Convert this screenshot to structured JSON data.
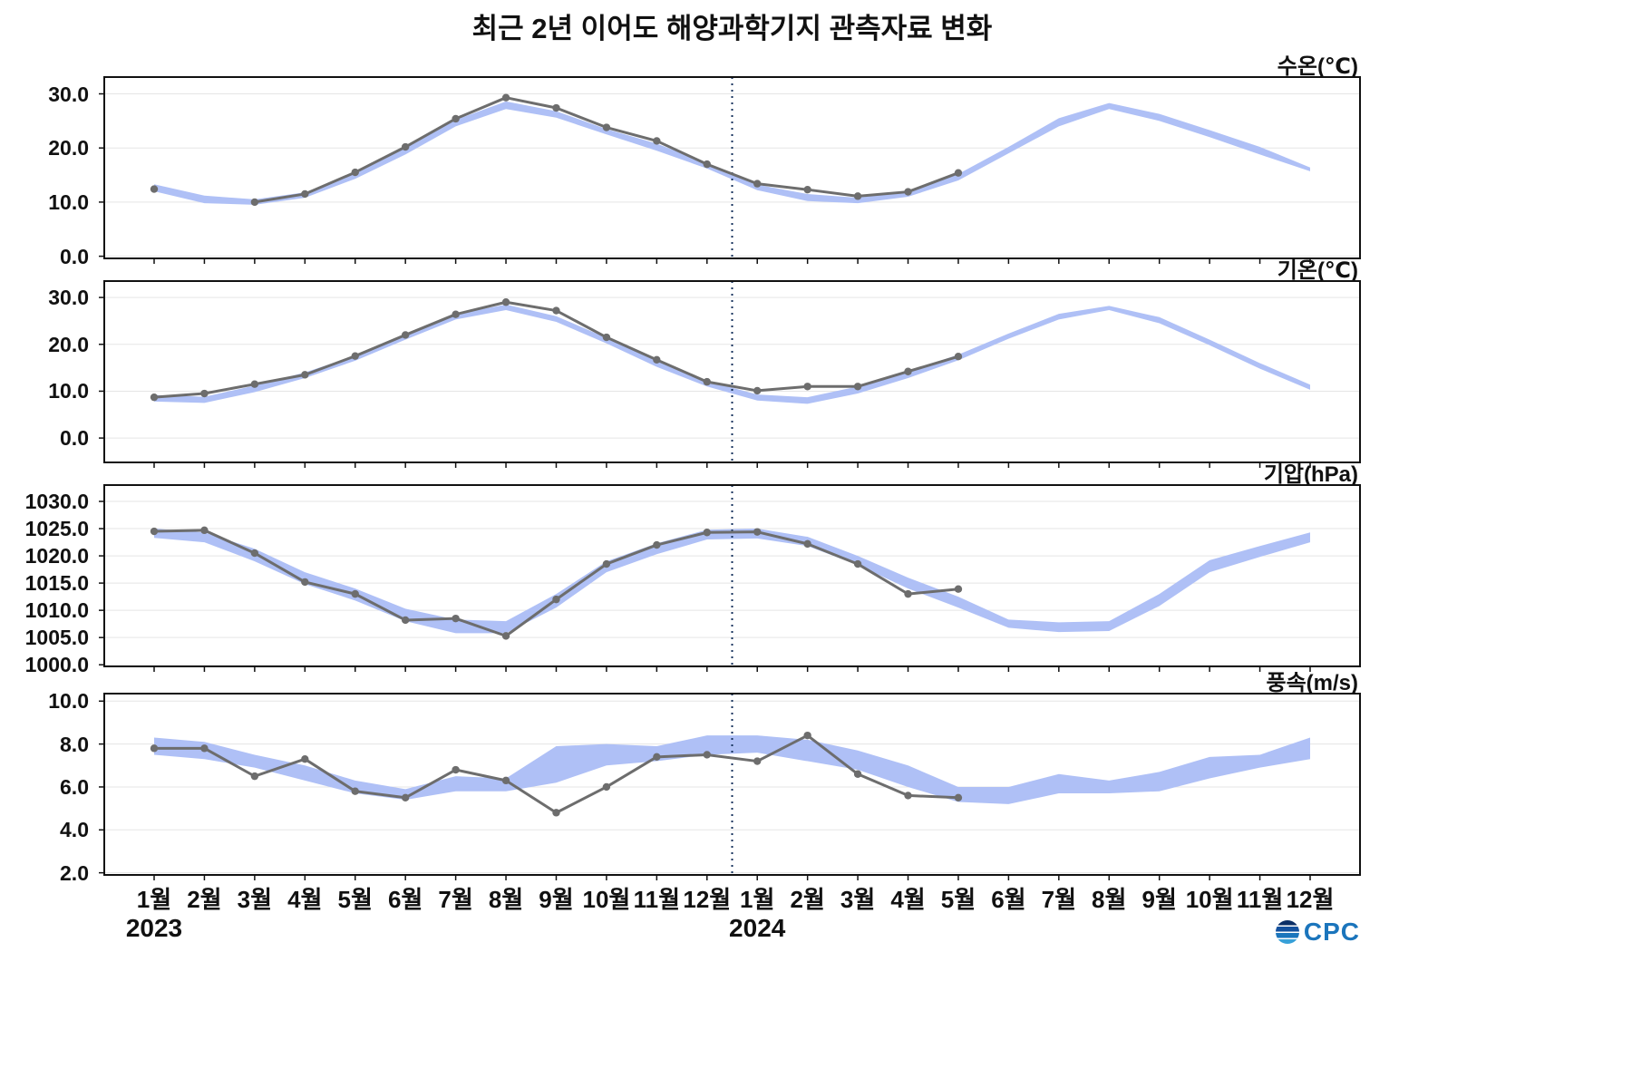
{
  "title": "최근 2년 이어도 해양과학기지 관측자료 변화",
  "x_axis": {
    "month_labels": [
      "1월",
      "2월",
      "3월",
      "4월",
      "5월",
      "6월",
      "7월",
      "8월",
      "9월",
      "10월",
      "11월",
      "12월",
      "1월",
      "2월",
      "3월",
      "4월",
      "5월",
      "6월",
      "7월",
      "8월",
      "9월",
      "10월",
      "11월",
      "12월"
    ],
    "year_labels": [
      "2023",
      "2024"
    ],
    "divider_between": [
      11,
      12
    ]
  },
  "colors": {
    "observed": "#6d6d6d",
    "band": "#afc0f6",
    "divider": "#16325c",
    "grid": "#e5e5e5",
    "axis": "#111111",
    "logo_blue": "#1b75bc"
  },
  "logo": {
    "name": "OCPC",
    "text_after_icon": "CPC"
  },
  "chart_data": [
    {
      "type": "line",
      "unit_label": "수온(℃)",
      "ylim": [
        -0.4,
        33.1
      ],
      "yticks": [
        0,
        10,
        20,
        30
      ],
      "ytick_labels": [
        "0.0",
        "10.0",
        "20.0",
        "30.0"
      ],
      "observed": [
        12.4,
        null,
        10.0,
        11.5,
        15.5,
        20.2,
        25.4,
        29.3,
        27.4,
        23.8,
        21.3,
        17.0,
        13.4,
        12.3,
        11.1,
        11.9,
        15.4,
        null,
        null,
        null,
        null,
        null,
        null,
        null
      ],
      "band_upper": [
        13.3,
        11.2,
        10.5,
        11.8,
        15.3,
        20.0,
        25.2,
        28.6,
        26.8,
        23.5,
        20.8,
        17.2,
        13.2,
        11.5,
        10.8,
        12.0,
        15.2,
        20.2,
        25.5,
        28.3,
        26.3,
        23.3,
        20.2,
        16.4
      ],
      "band_lower": [
        12.0,
        9.8,
        9.5,
        10.8,
        14.3,
        18.8,
        24.0,
        27.2,
        25.6,
        22.5,
        19.5,
        16.2,
        12.2,
        10.2,
        9.8,
        11.0,
        14.0,
        19.0,
        24.0,
        27.2,
        25.0,
        22.0,
        18.8,
        15.7
      ]
    },
    {
      "type": "line",
      "unit_label": "기온(℃)",
      "ylim": [
        -5.2,
        33.5
      ],
      "yticks": [
        0,
        10,
        20,
        30
      ],
      "ytick_labels": [
        "0.0",
        "10.0",
        "20.0",
        "30.0"
      ],
      "observed": [
        8.7,
        9.5,
        11.5,
        13.5,
        17.5,
        22.0,
        26.4,
        29.0,
        27.2,
        21.5,
        16.7,
        12.0,
        10.1,
        11.0,
        11.0,
        14.2,
        17.4,
        null,
        null,
        null,
        null,
        null,
        null,
        null
      ],
      "band_upper": [
        9.2,
        8.8,
        11.2,
        14.0,
        17.6,
        22.0,
        26.4,
        28.5,
        26.0,
        21.4,
        16.4,
        12.2,
        9.3,
        8.7,
        11.0,
        14.2,
        17.8,
        22.3,
        26.5,
        28.2,
        25.8,
        21.0,
        16.0,
        11.4
      ],
      "band_lower": [
        7.8,
        7.5,
        9.8,
        12.8,
        16.5,
        21.0,
        25.3,
        27.3,
        24.8,
        20.2,
        15.2,
        11.0,
        8.0,
        7.3,
        9.5,
        12.8,
        16.6,
        21.2,
        25.3,
        27.3,
        24.5,
        19.8,
        14.8,
        10.3
      ]
    },
    {
      "type": "line",
      "unit_label": "기압(hPa)",
      "ylim": [
        999.7,
        1033.0
      ],
      "yticks": [
        1000,
        1005,
        1010,
        1015,
        1020,
        1025,
        1030
      ],
      "ytick_labels": [
        "1000.0",
        "1005.0",
        "1010.0",
        "1015.0",
        "1020.0",
        "1025.0",
        "1030.0"
      ],
      "observed": [
        1024.5,
        1024.7,
        1020.5,
        1015.2,
        1013.0,
        1008.2,
        1008.5,
        1005.3,
        1012.0,
        1018.5,
        1022.0,
        1024.3,
        1024.4,
        1022.2,
        1018.5,
        1013.0,
        1013.9,
        null,
        null,
        null,
        null,
        null,
        null,
        null
      ],
      "band_upper": [
        1025.0,
        1024.3,
        1021.3,
        1017.0,
        1014.0,
        1010.3,
        1008.3,
        1008.0,
        1013.0,
        1019.0,
        1022.3,
        1024.8,
        1025.0,
        1023.5,
        1020.0,
        1016.0,
        1012.5,
        1008.3,
        1007.8,
        1008.0,
        1013.0,
        1019.2,
        1021.8,
        1024.3
      ],
      "band_lower": [
        1023.3,
        1022.5,
        1019.0,
        1014.8,
        1011.8,
        1008.0,
        1005.8,
        1005.8,
        1010.5,
        1017.0,
        1020.3,
        1023.0,
        1023.2,
        1021.8,
        1018.3,
        1014.0,
        1010.5,
        1006.8,
        1006.0,
        1006.2,
        1010.8,
        1017.0,
        1019.8,
        1022.5
      ]
    },
    {
      "type": "line",
      "unit_label": "풍속(m/s)",
      "ylim": [
        1.9,
        10.35
      ],
      "yticks": [
        2,
        4,
        6,
        8,
        10
      ],
      "ytick_labels": [
        "2.0",
        "4.0",
        "6.0",
        "8.0",
        "10.0"
      ],
      "observed": [
        7.8,
        7.8,
        6.5,
        7.3,
        5.8,
        5.5,
        6.8,
        6.3,
        4.8,
        6.0,
        7.4,
        7.5,
        7.2,
        8.4,
        6.6,
        5.6,
        5.5,
        null,
        null,
        null,
        null,
        null,
        null,
        null
      ],
      "band_upper": [
        8.3,
        8.1,
        7.5,
        7.0,
        6.3,
        5.9,
        6.5,
        6.4,
        7.9,
        8.0,
        7.9,
        8.4,
        8.4,
        8.2,
        7.7,
        7.0,
        6.0,
        6.0,
        6.6,
        6.3,
        6.7,
        7.4,
        7.5,
        8.3
      ],
      "band_lower": [
        7.5,
        7.3,
        6.9,
        6.3,
        5.7,
        5.4,
        5.8,
        5.8,
        6.2,
        7.0,
        7.2,
        7.5,
        7.6,
        7.2,
        6.8,
        6.0,
        5.3,
        5.2,
        5.7,
        5.7,
        5.8,
        6.4,
        6.9,
        7.3
      ]
    }
  ]
}
